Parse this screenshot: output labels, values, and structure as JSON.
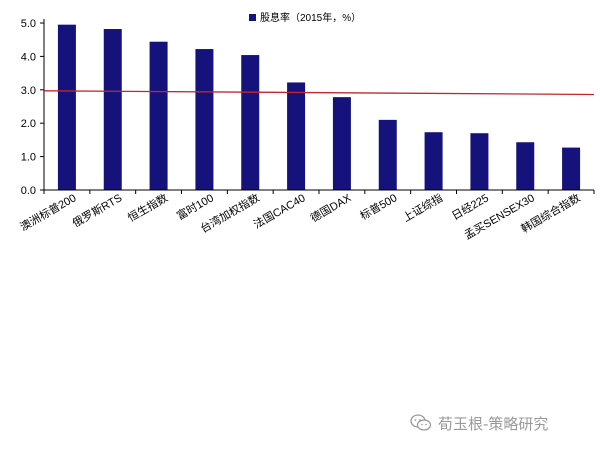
{
  "chart_data": {
    "type": "bar",
    "legend": {
      "label": "股息率（2015年，%）",
      "color": "#15127c",
      "placement": "top-center"
    },
    "categories": [
      "澳洲标普200",
      "俄罗斯RTS",
      "恒生指数",
      "富时100",
      "台湾加权指数",
      "法国CAC40",
      "德国DAX",
      "标普500",
      "上证综指",
      "日经225",
      "孟买SENSEX30",
      "韩国综合指数"
    ],
    "values": [
      4.95,
      4.82,
      4.44,
      4.22,
      4.04,
      3.22,
      2.78,
      2.1,
      1.73,
      1.7,
      1.43,
      1.27
    ],
    "ylim": [
      0,
      5
    ],
    "yticks": [
      "0.0",
      "1.0",
      "2.0",
      "3.0",
      "4.0",
      "5.0"
    ],
    "reference_line": {
      "start": 2.97,
      "end": 2.86,
      "color": "#c0282d"
    },
    "bar_color": "#15127c"
  },
  "watermark": {
    "text": "荀玉根-策略研究",
    "icon": "wechat-icon"
  }
}
